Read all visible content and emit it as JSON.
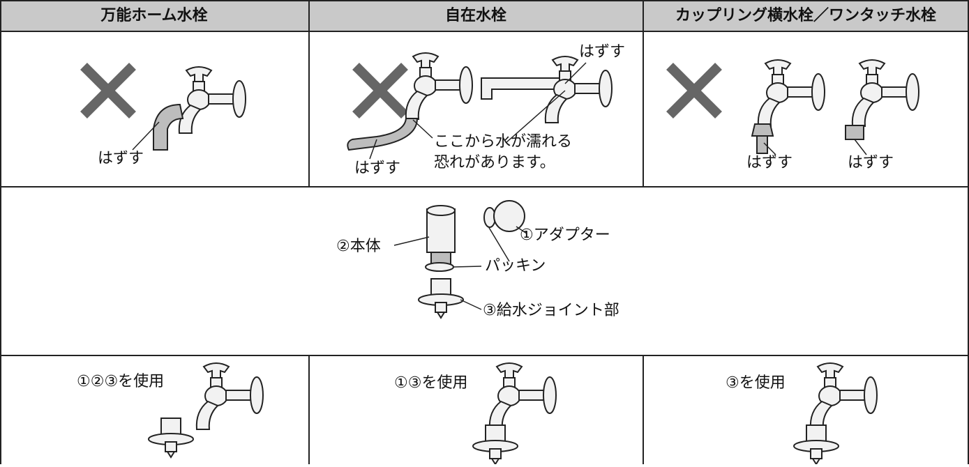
{
  "headers": [
    "万能ホーム水栓",
    "自在水栓",
    "カップリング横水栓／ワンタッチ水栓"
  ],
  "remove_row": {
    "universal": {
      "label": "はずす"
    },
    "flexible": {
      "top_label": "はずす",
      "bottom_label": "はずす",
      "warning": [
        "ここから水が濡れる",
        "恐れがあります。"
      ]
    },
    "coupling": {
      "left_label": "はずす",
      "right_label": "はずす"
    }
  },
  "parts": {
    "body": "②本体",
    "adapter": "①アダプター",
    "packing": "パッキン",
    "joint": "③給水ジョイント部"
  },
  "usage": [
    "①②③を使用",
    "①③を使用",
    "③を使用"
  ]
}
